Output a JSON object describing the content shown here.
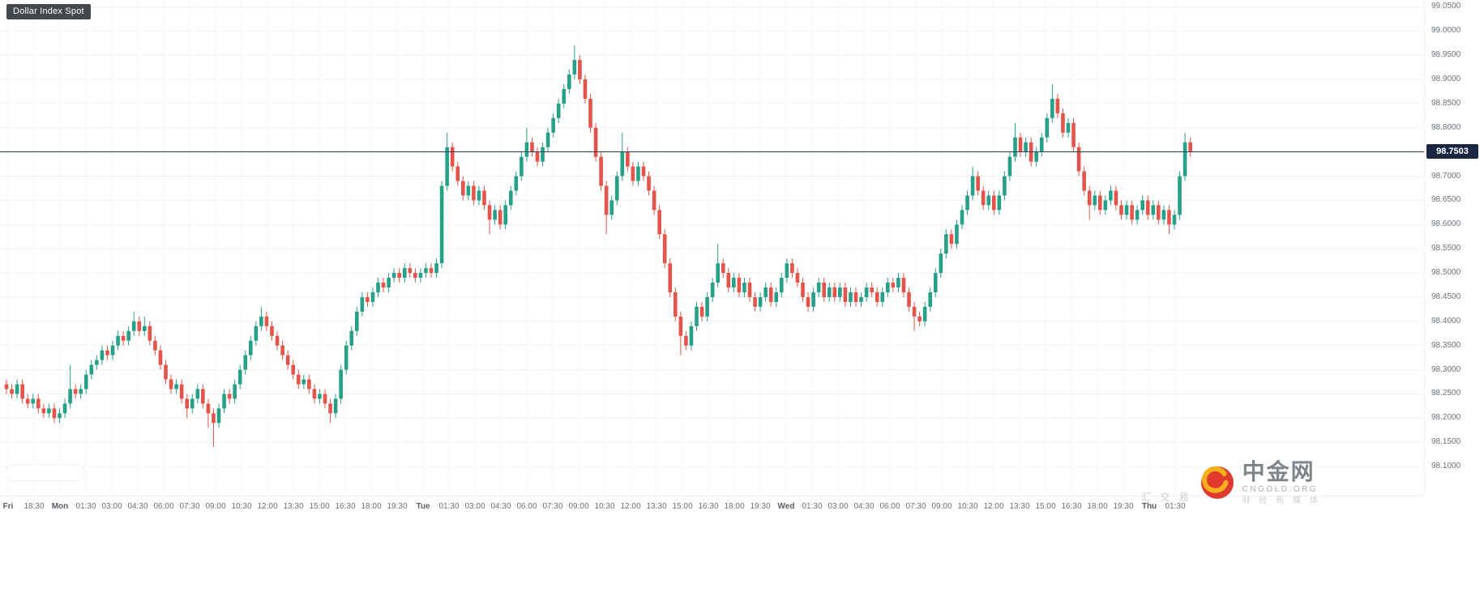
{
  "title_badge": "Dollar Index Spot",
  "price_tag": "98.7503",
  "watermark": {
    "brand": "中金网",
    "domain": "CNGOLD.ORG",
    "tagline_left": "汇 交 易",
    "tagline_bottom": "财 经 新 媒 体"
  },
  "colors": {
    "up": "#26a087",
    "down": "#e4544b",
    "price_line": "#2a3b55",
    "price_tag_bg": "#1b2740",
    "badge_bg": "#43484c",
    "grid_h": "#f0f3f6",
    "grid_v": "#f4f6f9",
    "axis_text": "#6b7279"
  },
  "chart_data": {
    "type": "candlestick",
    "title": "Dollar Index Spot",
    "last_price": 98.7503,
    "ylim": [
      98.04,
      99.064
    ],
    "grid": true,
    "price_ticks": [
      "99.0500",
      "99.0000",
      "98.9500",
      "98.9000",
      "98.8500",
      "98.8000",
      "98.7500",
      "98.7000",
      "98.6500",
      "98.6000",
      "98.5500",
      "98.5000",
      "98.4500",
      "98.4000",
      "98.3500",
      "98.3000",
      "98.2500",
      "98.2000",
      "98.1500",
      "98.1000"
    ],
    "time_ticks": [
      "Fri",
      "18:30",
      "Mon",
      "01:30",
      "03:00",
      "04:30",
      "06:00",
      "07:30",
      "09:00",
      "10:30",
      "12:00",
      "13:30",
      "15:00",
      "16:30",
      "18:00",
      "19:30",
      "Tue",
      "01:30",
      "03:00",
      "04:30",
      "06:00",
      "07:30",
      "09:00",
      "10:30",
      "12:00",
      "13:30",
      "15:00",
      "16:30",
      "18:00",
      "19:30",
      "Wed",
      "01:30",
      "03:00",
      "04:30",
      "06:00",
      "07:30",
      "09:00",
      "10:30",
      "12:00",
      "13:30",
      "15:00",
      "16:30",
      "18:00",
      "19:30",
      "Thu",
      "01:30"
    ],
    "candles": [
      [
        98.27,
        98.28,
        98.25,
        98.26
      ],
      [
        98.26,
        98.27,
        98.24,
        98.25
      ],
      [
        98.25,
        98.28,
        98.24,
        98.27
      ],
      [
        98.27,
        98.28,
        98.23,
        98.24
      ],
      [
        98.24,
        98.25,
        98.22,
        98.23
      ],
      [
        98.23,
        98.25,
        98.22,
        98.24
      ],
      [
        98.24,
        98.25,
        98.21,
        98.22
      ],
      [
        98.22,
        98.23,
        98.2,
        98.21
      ],
      [
        98.21,
        98.23,
        98.2,
        98.22
      ],
      [
        98.22,
        98.23,
        98.19,
        98.2
      ],
      [
        98.2,
        98.22,
        98.19,
        98.21
      ],
      [
        98.21,
        98.24,
        98.2,
        98.23
      ],
      [
        98.23,
        98.31,
        98.22,
        98.26
      ],
      [
        98.26,
        98.27,
        98.24,
        98.25
      ],
      [
        98.25,
        98.27,
        98.24,
        98.26
      ],
      [
        98.26,
        98.3,
        98.25,
        98.29
      ],
      [
        98.29,
        98.32,
        98.28,
        98.31
      ],
      [
        98.31,
        98.33,
        98.3,
        98.32
      ],
      [
        98.32,
        98.35,
        98.31,
        98.34
      ],
      [
        98.34,
        98.35,
        98.32,
        98.33
      ],
      [
        98.33,
        98.36,
        98.32,
        98.35
      ],
      [
        98.35,
        98.38,
        98.34,
        98.37
      ],
      [
        98.37,
        98.38,
        98.35,
        98.36
      ],
      [
        98.36,
        98.39,
        98.35,
        98.38
      ],
      [
        98.38,
        98.42,
        98.37,
        98.4
      ],
      [
        98.4,
        98.41,
        98.37,
        98.38
      ],
      [
        98.38,
        98.41,
        98.37,
        98.39
      ],
      [
        98.39,
        98.4,
        98.35,
        98.36
      ],
      [
        98.36,
        98.37,
        98.33,
        98.34
      ],
      [
        98.34,
        98.35,
        98.3,
        98.31
      ],
      [
        98.31,
        98.32,
        98.27,
        98.28
      ],
      [
        98.28,
        98.29,
        98.25,
        98.26
      ],
      [
        98.26,
        98.28,
        98.25,
        98.27
      ],
      [
        98.27,
        98.28,
        98.23,
        98.24
      ],
      [
        98.24,
        98.25,
        98.2,
        98.22
      ],
      [
        98.22,
        98.25,
        98.21,
        98.24
      ],
      [
        98.24,
        98.27,
        98.23,
        98.26
      ],
      [
        98.26,
        98.27,
        98.22,
        98.23
      ],
      [
        98.23,
        98.24,
        98.18,
        98.21
      ],
      [
        98.21,
        98.22,
        98.14,
        98.19
      ],
      [
        98.19,
        98.23,
        98.18,
        98.22
      ],
      [
        98.22,
        98.26,
        98.21,
        98.25
      ],
      [
        98.25,
        98.26,
        98.23,
        98.24
      ],
      [
        98.24,
        98.28,
        98.23,
        98.27
      ],
      [
        98.27,
        98.31,
        98.26,
        98.3
      ],
      [
        98.3,
        98.34,
        98.29,
        98.33
      ],
      [
        98.33,
        98.37,
        98.32,
        98.36
      ],
      [
        98.36,
        98.4,
        98.35,
        98.39
      ],
      [
        98.39,
        98.43,
        98.38,
        98.41
      ],
      [
        98.41,
        98.42,
        98.38,
        98.39
      ],
      [
        98.39,
        98.4,
        98.36,
        98.37
      ],
      [
        98.37,
        98.38,
        98.34,
        98.35
      ],
      [
        98.35,
        98.36,
        98.32,
        98.33
      ],
      [
        98.33,
        98.34,
        98.3,
        98.31
      ],
      [
        98.31,
        98.32,
        98.28,
        98.29
      ],
      [
        98.29,
        98.3,
        98.26,
        98.27
      ],
      [
        98.27,
        98.29,
        98.26,
        98.28
      ],
      [
        98.28,
        98.29,
        98.25,
        98.26
      ],
      [
        98.26,
        98.27,
        98.23,
        98.24
      ],
      [
        98.24,
        98.26,
        98.23,
        98.25
      ],
      [
        98.25,
        98.26,
        98.22,
        98.23
      ],
      [
        98.23,
        98.24,
        98.19,
        98.21
      ],
      [
        98.21,
        98.25,
        98.2,
        98.24
      ],
      [
        98.24,
        98.31,
        98.23,
        98.3
      ],
      [
        98.3,
        98.36,
        98.29,
        98.35
      ],
      [
        98.35,
        98.39,
        98.34,
        98.38
      ],
      [
        98.38,
        98.43,
        98.37,
        98.42
      ],
      [
        98.42,
        98.46,
        98.41,
        98.45
      ],
      [
        98.45,
        98.46,
        98.43,
        98.44
      ],
      [
        98.44,
        98.47,
        98.43,
        98.46
      ],
      [
        98.46,
        98.49,
        98.45,
        98.48
      ],
      [
        98.48,
        98.49,
        98.46,
        98.47
      ],
      [
        98.47,
        98.5,
        98.46,
        98.49
      ],
      [
        98.49,
        98.51,
        98.48,
        98.5
      ],
      [
        98.5,
        98.51,
        98.48,
        98.49
      ],
      [
        98.49,
        98.52,
        98.48,
        98.51
      ],
      [
        98.51,
        98.52,
        98.49,
        98.5
      ],
      [
        98.5,
        98.51,
        98.48,
        98.49
      ],
      [
        98.49,
        98.51,
        98.48,
        98.5
      ],
      [
        98.5,
        98.52,
        98.49,
        98.51
      ],
      [
        98.51,
        98.52,
        98.49,
        98.5
      ],
      [
        98.5,
        98.53,
        98.49,
        98.52
      ],
      [
        98.52,
        98.69,
        98.51,
        98.68
      ],
      [
        98.68,
        98.79,
        98.67,
        98.76
      ],
      [
        98.76,
        98.77,
        98.71,
        98.72
      ],
      [
        98.72,
        98.73,
        98.68,
        98.69
      ],
      [
        98.69,
        98.7,
        98.65,
        98.66
      ],
      [
        98.66,
        98.69,
        98.65,
        98.68
      ],
      [
        98.68,
        98.69,
        98.64,
        98.65
      ],
      [
        98.65,
        98.68,
        98.64,
        98.67
      ],
      [
        98.67,
        98.68,
        98.63,
        98.64
      ],
      [
        98.64,
        98.65,
        98.58,
        98.61
      ],
      [
        98.61,
        98.64,
        98.6,
        98.63
      ],
      [
        98.63,
        98.64,
        98.59,
        98.6
      ],
      [
        98.6,
        98.65,
        98.59,
        98.64
      ],
      [
        98.64,
        98.68,
        98.63,
        98.67
      ],
      [
        98.67,
        98.71,
        98.66,
        98.7
      ],
      [
        98.7,
        98.75,
        98.69,
        98.74
      ],
      [
        98.74,
        98.8,
        98.73,
        98.77
      ],
      [
        98.77,
        98.78,
        98.74,
        98.75
      ],
      [
        98.75,
        98.76,
        98.72,
        98.73
      ],
      [
        98.73,
        98.77,
        98.72,
        98.76
      ],
      [
        98.76,
        98.8,
        98.75,
        98.79
      ],
      [
        98.79,
        98.83,
        98.78,
        98.82
      ],
      [
        98.82,
        98.86,
        98.81,
        98.85
      ],
      [
        98.85,
        98.89,
        98.84,
        98.88
      ],
      [
        98.88,
        98.92,
        98.87,
        98.91
      ],
      [
        98.91,
        98.97,
        98.9,
        98.94
      ],
      [
        98.94,
        98.95,
        98.89,
        98.9
      ],
      [
        98.9,
        98.91,
        98.85,
        98.86
      ],
      [
        98.86,
        98.87,
        98.79,
        98.8
      ],
      [
        98.8,
        98.81,
        98.73,
        98.74
      ],
      [
        98.74,
        98.75,
        98.67,
        98.68
      ],
      [
        98.68,
        98.69,
        98.58,
        98.62
      ],
      [
        98.62,
        98.66,
        98.61,
        98.65
      ],
      [
        98.65,
        98.71,
        98.64,
        98.7
      ],
      [
        98.7,
        98.79,
        98.69,
        98.75
      ],
      [
        98.75,
        98.76,
        98.71,
        98.72
      ],
      [
        98.72,
        98.73,
        98.68,
        98.69
      ],
      [
        98.69,
        98.73,
        98.68,
        98.72
      ],
      [
        98.72,
        98.73,
        98.69,
        98.7
      ],
      [
        98.7,
        98.71,
        98.66,
        98.67
      ],
      [
        98.67,
        98.68,
        98.62,
        98.63
      ],
      [
        98.63,
        98.64,
        98.57,
        98.58
      ],
      [
        98.58,
        98.59,
        98.51,
        98.52
      ],
      [
        98.52,
        98.53,
        98.45,
        98.46
      ],
      [
        98.46,
        98.47,
        98.4,
        98.41
      ],
      [
        98.41,
        98.42,
        98.33,
        98.37
      ],
      [
        98.37,
        98.38,
        98.34,
        98.35
      ],
      [
        98.35,
        98.4,
        98.34,
        98.39
      ],
      [
        98.39,
        98.44,
        98.38,
        98.43
      ],
      [
        98.43,
        98.44,
        98.4,
        98.41
      ],
      [
        98.41,
        98.46,
        98.4,
        98.45
      ],
      [
        98.45,
        98.49,
        98.44,
        98.48
      ],
      [
        98.48,
        98.56,
        98.47,
        98.52
      ],
      [
        98.52,
        98.53,
        98.49,
        98.5
      ],
      [
        98.5,
        98.51,
        98.46,
        98.47
      ],
      [
        98.47,
        98.5,
        98.46,
        98.49
      ],
      [
        98.49,
        98.5,
        98.45,
        98.46
      ],
      [
        98.46,
        98.49,
        98.45,
        98.48
      ],
      [
        98.48,
        98.49,
        98.44,
        98.45
      ],
      [
        98.45,
        98.46,
        98.42,
        98.43
      ],
      [
        98.43,
        98.46,
        98.42,
        98.45
      ],
      [
        98.45,
        98.48,
        98.44,
        98.47
      ],
      [
        98.47,
        98.48,
        98.43,
        98.44
      ],
      [
        98.44,
        98.47,
        98.43,
        98.46
      ],
      [
        98.46,
        98.5,
        98.45,
        98.49
      ],
      [
        98.49,
        98.53,
        98.48,
        98.52
      ],
      [
        98.52,
        98.53,
        98.49,
        98.5
      ],
      [
        98.5,
        98.51,
        98.47,
        98.48
      ],
      [
        98.48,
        98.49,
        98.44,
        98.45
      ],
      [
        98.45,
        98.46,
        98.42,
        98.43
      ],
      [
        98.43,
        98.47,
        98.42,
        98.46
      ],
      [
        98.46,
        98.49,
        98.45,
        98.48
      ],
      [
        98.48,
        98.49,
        98.44,
        98.45
      ],
      [
        98.45,
        98.48,
        98.44,
        98.47
      ],
      [
        98.47,
        98.48,
        98.44,
        98.45
      ],
      [
        98.45,
        98.48,
        98.44,
        98.47
      ],
      [
        98.47,
        98.48,
        98.43,
        98.44
      ],
      [
        98.44,
        98.47,
        98.43,
        98.46
      ],
      [
        98.46,
        98.47,
        98.43,
        98.44
      ],
      [
        98.44,
        98.46,
        98.43,
        98.45
      ],
      [
        98.45,
        98.48,
        98.44,
        98.47
      ],
      [
        98.47,
        98.48,
        98.45,
        98.46
      ],
      [
        98.46,
        98.47,
        98.43,
        98.44
      ],
      [
        98.44,
        98.47,
        98.43,
        98.46
      ],
      [
        98.46,
        98.49,
        98.45,
        98.48
      ],
      [
        98.48,
        98.49,
        98.46,
        98.47
      ],
      [
        98.47,
        98.5,
        98.46,
        98.49
      ],
      [
        98.49,
        98.5,
        98.45,
        98.46
      ],
      [
        98.46,
        98.47,
        98.42,
        98.43
      ],
      [
        98.43,
        98.44,
        98.38,
        98.41
      ],
      [
        98.41,
        98.42,
        98.39,
        98.4
      ],
      [
        98.4,
        98.44,
        98.39,
        98.43
      ],
      [
        98.43,
        98.47,
        98.42,
        98.46
      ],
      [
        98.46,
        98.51,
        98.45,
        98.5
      ],
      [
        98.5,
        98.55,
        98.49,
        98.54
      ],
      [
        98.54,
        98.59,
        98.53,
        98.58
      ],
      [
        98.58,
        98.59,
        98.55,
        98.56
      ],
      [
        98.56,
        98.61,
        98.55,
        98.6
      ],
      [
        98.6,
        98.64,
        98.59,
        98.63
      ],
      [
        98.63,
        98.67,
        98.62,
        98.66
      ],
      [
        98.66,
        98.72,
        98.65,
        98.7
      ],
      [
        98.7,
        98.71,
        98.66,
        98.67
      ],
      [
        98.67,
        98.68,
        98.63,
        98.64
      ],
      [
        98.64,
        98.67,
        98.63,
        98.66
      ],
      [
        98.66,
        98.67,
        98.62,
        98.63
      ],
      [
        98.63,
        98.67,
        98.62,
        98.66
      ],
      [
        98.66,
        98.71,
        98.65,
        98.7
      ],
      [
        98.7,
        98.75,
        98.69,
        98.74
      ],
      [
        98.74,
        98.81,
        98.73,
        98.78
      ],
      [
        98.78,
        98.79,
        98.74,
        98.75
      ],
      [
        98.75,
        98.78,
        98.74,
        98.77
      ],
      [
        98.77,
        98.78,
        98.72,
        98.73
      ],
      [
        98.73,
        98.76,
        98.72,
        98.75
      ],
      [
        98.75,
        98.79,
        98.74,
        98.78
      ],
      [
        98.78,
        98.83,
        98.77,
        98.82
      ],
      [
        98.82,
        98.89,
        98.81,
        98.86
      ],
      [
        98.86,
        98.87,
        98.82,
        98.83
      ],
      [
        98.83,
        98.84,
        98.78,
        98.79
      ],
      [
        98.79,
        98.82,
        98.78,
        98.81
      ],
      [
        98.81,
        98.82,
        98.75,
        98.76
      ],
      [
        98.76,
        98.77,
        98.7,
        98.71
      ],
      [
        98.71,
        98.72,
        98.66,
        98.67
      ],
      [
        98.67,
        98.68,
        98.61,
        98.64
      ],
      [
        98.64,
        98.67,
        98.63,
        98.66
      ],
      [
        98.66,
        98.67,
        98.62,
        98.63
      ],
      [
        98.63,
        98.66,
        98.62,
        98.65
      ],
      [
        98.65,
        98.68,
        98.64,
        98.67
      ],
      [
        98.67,
        98.68,
        98.63,
        98.64
      ],
      [
        98.64,
        98.65,
        98.61,
        98.62
      ],
      [
        98.62,
        98.65,
        98.61,
        98.64
      ],
      [
        98.64,
        98.65,
        98.6,
        98.61
      ],
      [
        98.61,
        98.64,
        98.6,
        98.63
      ],
      [
        98.63,
        98.66,
        98.62,
        98.65
      ],
      [
        98.65,
        98.66,
        98.61,
        98.62
      ],
      [
        98.62,
        98.65,
        98.61,
        98.64
      ],
      [
        98.64,
        98.65,
        98.6,
        98.61
      ],
      [
        98.61,
        98.64,
        98.6,
        98.63
      ],
      [
        98.63,
        98.64,
        98.58,
        98.6
      ],
      [
        98.6,
        98.63,
        98.59,
        98.62
      ],
      [
        98.62,
        98.71,
        98.61,
        98.7
      ],
      [
        98.7,
        98.79,
        98.69,
        98.77
      ],
      [
        98.77,
        98.78,
        98.74,
        98.7503
      ]
    ]
  }
}
